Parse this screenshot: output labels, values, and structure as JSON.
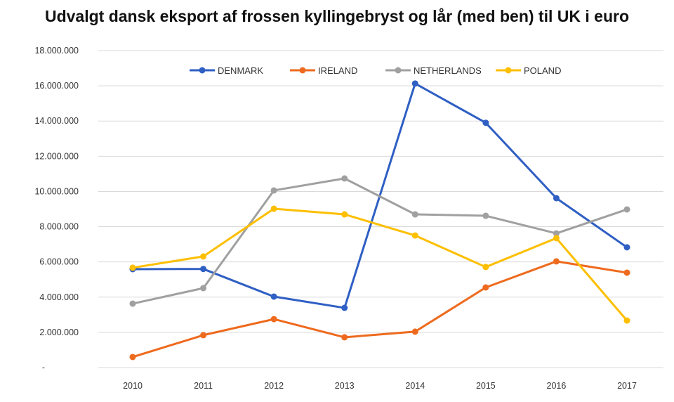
{
  "chart_data": {
    "type": "line",
    "title": "Udvalgt dansk eksport af frossen kyllingebryst og lår (med ben) til UK i euro",
    "xlabel": "",
    "ylabel": "",
    "categories": [
      "2010",
      "2011",
      "2012",
      "2013",
      "2014",
      "2015",
      "2016",
      "2017"
    ],
    "ylim": [
      0,
      18000000
    ],
    "yticks": [
      0,
      2000000,
      4000000,
      6000000,
      8000000,
      10000000,
      12000000,
      14000000,
      16000000,
      18000000
    ],
    "ytick_labels": [
      "-",
      "2.000.000",
      "4.000.000",
      "6.000.000",
      "8.000.000",
      "10.000.000",
      "12.000.000",
      "14.000.000",
      "16.000.000",
      "18.000.000"
    ],
    "grid": true,
    "legend_position": "top",
    "series": [
      {
        "name": "DENMARK",
        "color": "#2f5fc4",
        "values": [
          5590000,
          5600000,
          4030000,
          3390000,
          16130000,
          13900000,
          9620000,
          6830000
        ]
      },
      {
        "name": "IRELAND",
        "color": "#ee6a1e",
        "values": [
          600000,
          1840000,
          2750000,
          1720000,
          2040000,
          4550000,
          6030000,
          5390000
        ]
      },
      {
        "name": "NETHERLANDS",
        "color": "#a0a0a0",
        "values": [
          3630000,
          4510000,
          10060000,
          10740000,
          8700000,
          8620000,
          7620000,
          8980000
        ]
      },
      {
        "name": "POLAND",
        "color": "#fdbf00",
        "values": [
          5670000,
          6310000,
          9020000,
          8700000,
          7500000,
          5710000,
          7350000,
          2670000
        ]
      }
    ]
  }
}
